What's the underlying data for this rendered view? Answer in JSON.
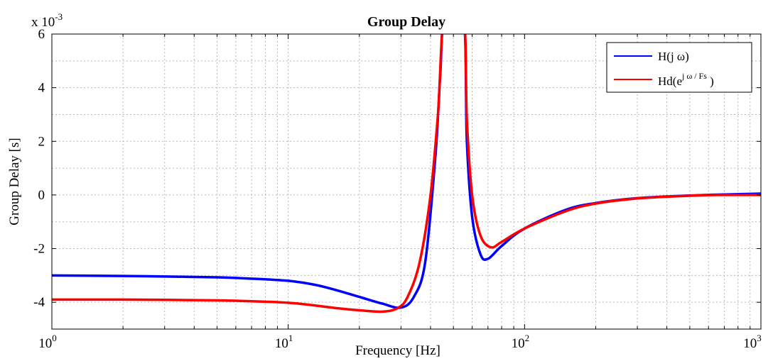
{
  "chart_data": {
    "type": "line",
    "title": "Group Delay",
    "xlabel": "Frequency [Hz]",
    "ylabel": "Group Delay [s]",
    "y_exponent_label": "x 10",
    "y_exponent": "-3",
    "xscale": "log",
    "xlim": [
      1,
      1000
    ],
    "ylim": [
      -5,
      6
    ],
    "x_ticks": [
      {
        "value": 1,
        "base": "10",
        "exp": "0"
      },
      {
        "value": 10,
        "base": "10",
        "exp": "1"
      },
      {
        "value": 100,
        "base": "10",
        "exp": "2"
      },
      {
        "value": 1000,
        "base": "10",
        "exp": "3"
      }
    ],
    "y_ticks": [
      6,
      4,
      2,
      0,
      -2,
      -4
    ],
    "grid": true,
    "legend_position": "top-right",
    "series": [
      {
        "name": "H(j ω)",
        "color": "#0000ff",
        "x": [
          1,
          2,
          3,
          5,
          7,
          10,
          13,
          16,
          20,
          25,
          30,
          34,
          38,
          42,
          44,
          46,
          55,
          57,
          60,
          65,
          70,
          80,
          100,
          150,
          200,
          300,
          500,
          700,
          1000
        ],
        "y": [
          -3.0,
          -3.02,
          -3.04,
          -3.07,
          -3.12,
          -3.2,
          -3.35,
          -3.55,
          -3.8,
          -4.05,
          -4.2,
          -3.8,
          -2.5,
          1.5,
          4.5,
          6.8,
          6.8,
          2.0,
          -0.8,
          -2.2,
          -2.38,
          -1.9,
          -1.25,
          -0.55,
          -0.3,
          -0.12,
          -0.02,
          0.02,
          0.05
        ]
      },
      {
        "name": "Hd(e",
        "name_sup": "j ω / Fs",
        "name_close": " )",
        "color": "#ff0000",
        "x": [
          1,
          2,
          3,
          5,
          7,
          10,
          13,
          16,
          20,
          25,
          29,
          32,
          36,
          40,
          43,
          46,
          55,
          57,
          60,
          65,
          72,
          80,
          100,
          150,
          200,
          300,
          500,
          700,
          1000
        ],
        "y": [
          -3.9,
          -3.9,
          -3.91,
          -3.93,
          -3.96,
          -4.02,
          -4.12,
          -4.22,
          -4.3,
          -4.35,
          -4.22,
          -3.8,
          -2.5,
          0.0,
          3.0,
          6.8,
          6.8,
          2.8,
          0.0,
          -1.5,
          -1.95,
          -1.75,
          -1.25,
          -0.6,
          -0.32,
          -0.13,
          -0.03,
          0.0,
          0.0
        ]
      }
    ]
  }
}
